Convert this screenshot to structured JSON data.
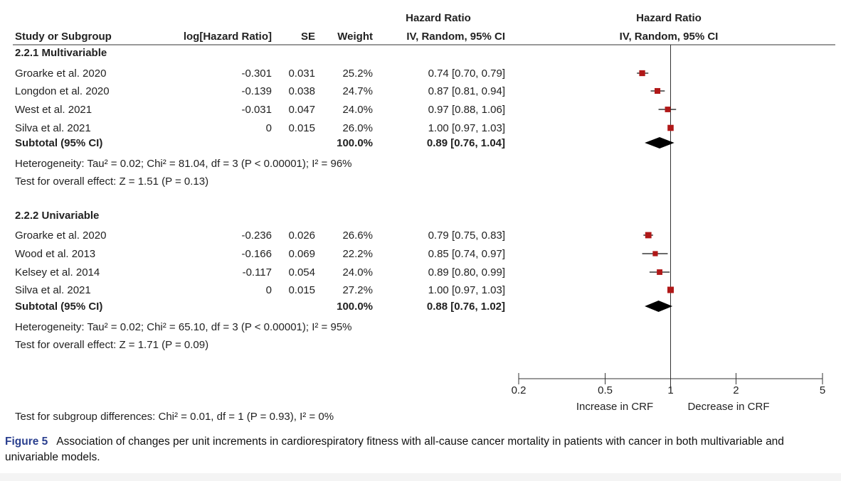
{
  "headers": {
    "study": "Study or Subgroup",
    "log_hr": "log[Hazard Ratio]",
    "se": "SE",
    "weight": "Weight",
    "hr_title": "Hazard Ratio",
    "hr_method": "IV, Random, 95% CI",
    "plot_title": "Hazard Ratio",
    "plot_method": "IV, Random, 95% CI"
  },
  "chart_data": {
    "type": "forest",
    "scale": "log",
    "axis": {
      "ticks": [
        0.2,
        0.5,
        1,
        2,
        5
      ],
      "tick_labels": [
        "0.2",
        "0.5",
        "1",
        "2",
        "5"
      ],
      "xlim": [
        0.2,
        5
      ],
      "null_line": 1
    },
    "favours": {
      "left": "Increase in CRF",
      "right": "Decrease in CRF"
    },
    "subgroups": [
      {
        "name": "2.2.1 Multivariable",
        "studies": [
          {
            "study": "Groarke et al. 2020",
            "log_hr": "-0.301",
            "se": "0.031",
            "weight": "25.2%",
            "ci_text": "0.74 [0.70, 0.79]",
            "hr": 0.74,
            "lo": 0.7,
            "hi": 0.79,
            "w": 25.2
          },
          {
            "study": "Longdon et al. 2020",
            "log_hr": "-0.139",
            "se": "0.038",
            "weight": "24.7%",
            "ci_text": "0.87 [0.81, 0.94]",
            "hr": 0.87,
            "lo": 0.81,
            "hi": 0.94,
            "w": 24.7
          },
          {
            "study": "West et al. 2021",
            "log_hr": "-0.031",
            "se": "0.047",
            "weight": "24.0%",
            "ci_text": "0.97 [0.88, 1.06]",
            "hr": 0.97,
            "lo": 0.88,
            "hi": 1.06,
            "w": 24.0
          },
          {
            "study": "Silva et al. 2021",
            "log_hr": "0",
            "se": "0.015",
            "weight": "26.0%",
            "ci_text": "1.00 [0.97, 1.03]",
            "hr": 1.0,
            "lo": 0.97,
            "hi": 1.03,
            "w": 26.0
          }
        ],
        "subtotal": {
          "label": "Subtotal (95% CI)",
          "weight": "100.0%",
          "ci_text": "0.89 [0.76, 1.04]",
          "hr": 0.89,
          "lo": 0.76,
          "hi": 1.04
        },
        "heterogeneity": "Heterogeneity: Tau² = 0.02; Chi² = 81.04, df = 3 (P < 0.00001); I² = 96%",
        "overall": "Test for overall effect: Z = 1.51 (P = 0.13)"
      },
      {
        "name": "2.2.2 Univariable",
        "studies": [
          {
            "study": "Groarke et al. 2020",
            "log_hr": "-0.236",
            "se": "0.026",
            "weight": "26.6%",
            "ci_text": "0.79 [0.75, 0.83]",
            "hr": 0.79,
            "lo": 0.75,
            "hi": 0.83,
            "w": 26.6
          },
          {
            "study": "Wood et al. 2013",
            "log_hr": "-0.166",
            "se": "0.069",
            "weight": "22.2%",
            "ci_text": "0.85 [0.74, 0.97]",
            "hr": 0.85,
            "lo": 0.74,
            "hi": 0.97,
            "w": 22.2
          },
          {
            "study": "Kelsey et al. 2014",
            "log_hr": "-0.117",
            "se": "0.054",
            "weight": "24.0%",
            "ci_text": "0.89 [0.80, 0.99]",
            "hr": 0.89,
            "lo": 0.8,
            "hi": 0.99,
            "w": 24.0
          },
          {
            "study": "Silva et al. 2021",
            "log_hr": "0",
            "se": "0.015",
            "weight": "27.2%",
            "ci_text": "1.00 [0.97, 1.03]",
            "hr": 1.0,
            "lo": 0.97,
            "hi": 1.03,
            "w": 27.2
          }
        ],
        "subtotal": {
          "label": "Subtotal (95% CI)",
          "weight": "100.0%",
          "ci_text": "0.88 [0.76, 1.02]",
          "hr": 0.88,
          "lo": 0.76,
          "hi": 1.02
        },
        "heterogeneity": "Heterogeneity: Tau² = 0.02; Chi² = 65.10, df = 3 (P < 0.00001); I² = 95%",
        "overall": "Test for overall effect: Z = 1.71 (P = 0.09)"
      }
    ],
    "subgroup_test": "Test for subgroup differences: Chi² = 0.01, df = 1 (P = 0.93), I² = 0%"
  },
  "caption": {
    "label": "Figure 5",
    "text": "Association of changes per unit increments in cardiorespiratory fitness with all-cause cancer mortality in patients with cancer in both multivariable and univariable models."
  },
  "colors": {
    "marker": "#b01818",
    "diamond": "#000000",
    "text": "#222222",
    "caption_label": "#2a3f8f"
  }
}
